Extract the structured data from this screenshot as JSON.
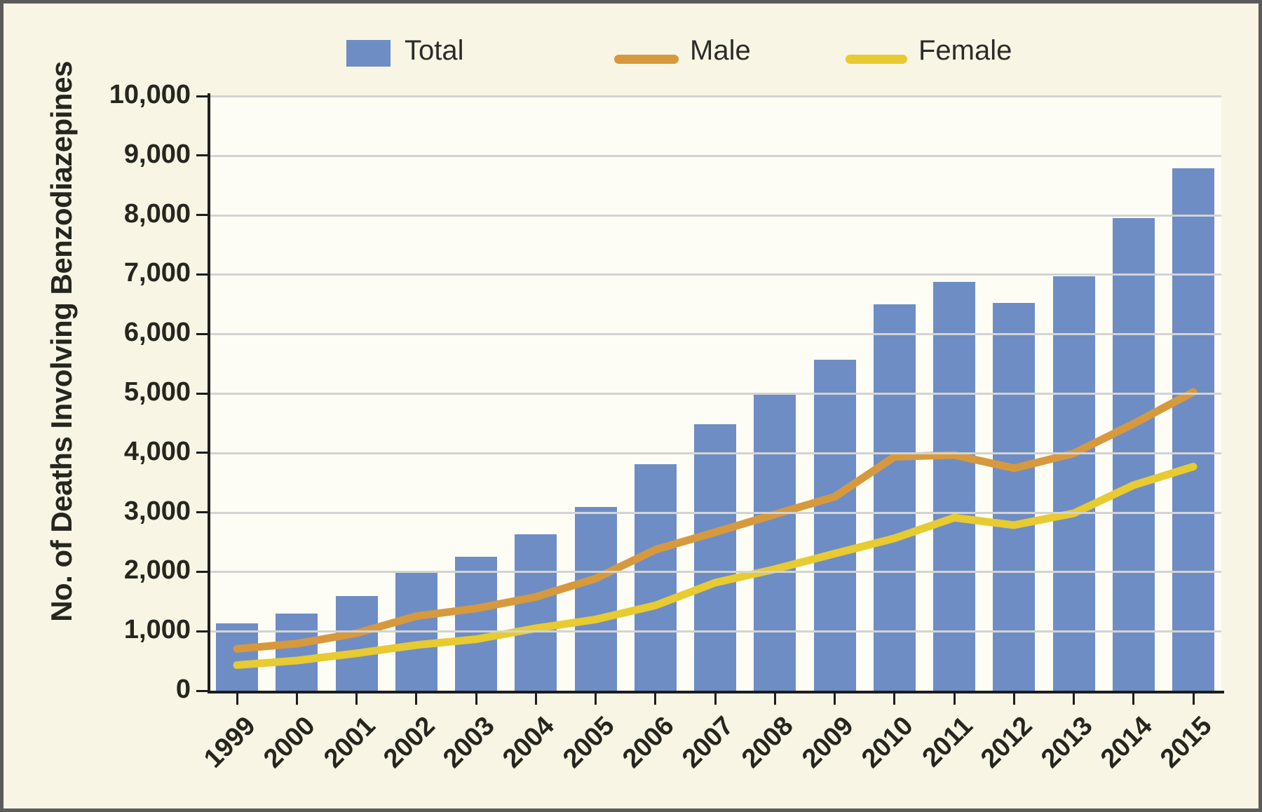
{
  "figure": {
    "y_axis_title": "No. of Deaths Involving Benzodiazepines",
    "colors": {
      "background": "#f8f5e5",
      "plot_background": "#fdfdf6",
      "gridline": "#d3d3d3",
      "axis": "#1d1d1b",
      "text": "#26261f",
      "frame_border": "#5b5b5b"
    }
  },
  "legend": {
    "items": [
      {
        "label": "Total",
        "type": "swatch",
        "color": "#6e8dc5"
      },
      {
        "label": "Male",
        "type": "line",
        "color": "#d7993e"
      },
      {
        "label": "Female",
        "type": "line",
        "color": "#e8ca31"
      }
    ]
  },
  "chart_data": {
    "type": "bar",
    "title": "",
    "xlabel": "",
    "ylabel": "No. of Deaths Involving Benzodiazepines",
    "ylim": [
      0,
      10000
    ],
    "ytick_step": 1000,
    "y_tick_labels": [
      "0",
      "1,000",
      "2,000",
      "3,000",
      "4,000",
      "5,000",
      "6,000",
      "7,000",
      "8,000",
      "9,000",
      "10,000"
    ],
    "grid": true,
    "legend_position": "top",
    "categories": [
      "1999",
      "2000",
      "2001",
      "2002",
      "2003",
      "2004",
      "2005",
      "2006",
      "2007",
      "2008",
      "2009",
      "2010",
      "2011",
      "2012",
      "2013",
      "2014",
      "2015"
    ],
    "series": [
      {
        "name": "Total",
        "type": "bar",
        "color": "#6e8dc5",
        "values": [
          1135,
          1298,
          1594,
          2022,
          2248,
          2627,
          3084,
          3805,
          4481,
          5010,
          5567,
          6497,
          6872,
          6524,
          6973,
          7945,
          8791
        ]
      },
      {
        "name": "Male",
        "type": "line",
        "color": "#d7993e",
        "values": [
          704,
          791,
          966,
          1254,
          1383,
          1577,
          1886,
          2371,
          2665,
          2966,
          3261,
          3934,
          3963,
          3740,
          3990,
          4489,
          5023
        ]
      },
      {
        "name": "Female",
        "type": "line",
        "color": "#e8ca31",
        "values": [
          431,
          507,
          628,
          768,
          865,
          1050,
          1198,
          1434,
          1816,
          2044,
          2306,
          2563,
          2909,
          2784,
          2983,
          3456,
          3768
        ]
      }
    ]
  }
}
